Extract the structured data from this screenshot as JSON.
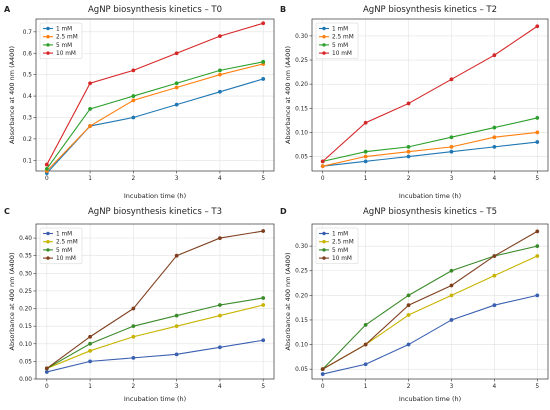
{
  "chart_data": [
    {
      "panel": "A",
      "type": "line",
      "title": "AgNP biosynthesis kinetics – T0",
      "xlabel": "Incubation time (h)",
      "ylabel": "Absorbance at 400 nm (A400)",
      "x": [
        0,
        1,
        2,
        3,
        4,
        5
      ],
      "xticks": [
        "0",
        "1",
        "2",
        "3",
        "4",
        "5"
      ],
      "ylim": [
        0.05,
        0.76
      ],
      "yticks": [
        0.1,
        0.2,
        0.3,
        0.4,
        0.5,
        0.6,
        0.7
      ],
      "ytick_labels": [
        "0.1",
        "0.2",
        "0.3",
        "0.4",
        "0.5",
        "0.6",
        "0.7"
      ],
      "legend_position": "top-left",
      "grid": true,
      "series": [
        {
          "name": "1 mM",
          "color": "#1f77b4",
          "values": [
            0.04,
            0.26,
            0.3,
            0.36,
            0.42,
            0.48
          ]
        },
        {
          "name": "2.5 mM",
          "color": "#ff7f0e",
          "values": [
            0.05,
            0.26,
            0.38,
            0.44,
            0.5,
            0.55
          ]
        },
        {
          "name": "5 mM",
          "color": "#2ca02c",
          "values": [
            0.06,
            0.34,
            0.4,
            0.46,
            0.52,
            0.56
          ]
        },
        {
          "name": "10 mM",
          "color": "#d62728",
          "values": [
            0.08,
            0.46,
            0.52,
            0.6,
            0.68,
            0.74
          ]
        }
      ]
    },
    {
      "panel": "B",
      "type": "line",
      "title": "AgNP biosynthesis kinetics – T2",
      "xlabel": "Incubation time (h)",
      "ylabel": "Absorbance at 400 nm (A400)",
      "x": [
        0,
        1,
        2,
        3,
        4,
        5
      ],
      "xticks": [
        "0",
        "1",
        "2",
        "3",
        "4",
        "5"
      ],
      "ylim": [
        0.02,
        0.335
      ],
      "yticks": [
        0.05,
        0.1,
        0.15,
        0.2,
        0.25,
        0.3
      ],
      "ytick_labels": [
        "0.05",
        "0.10",
        "0.15",
        "0.20",
        "0.25",
        "0.30"
      ],
      "legend_position": "top-left",
      "grid": true,
      "series": [
        {
          "name": "1 mM",
          "color": "#1f77b4",
          "values": [
            0.03,
            0.04,
            0.05,
            0.06,
            0.07,
            0.08
          ]
        },
        {
          "name": "2.5 mM",
          "color": "#ff7f0e",
          "values": [
            0.03,
            0.05,
            0.06,
            0.07,
            0.09,
            0.1
          ]
        },
        {
          "name": "5 mM",
          "color": "#2ca02c",
          "values": [
            0.04,
            0.06,
            0.07,
            0.09,
            0.11,
            0.13
          ]
        },
        {
          "name": "10 mM",
          "color": "#d62728",
          "values": [
            0.04,
            0.12,
            0.16,
            0.21,
            0.26,
            0.32
          ]
        }
      ]
    },
    {
      "panel": "C",
      "type": "line",
      "title": "AgNP biosynthesis kinetics – T3",
      "xlabel": "Incubation time (h)",
      "ylabel": "Absorbance at 400 nm (A400)",
      "x": [
        0,
        1,
        2,
        3,
        4,
        5
      ],
      "xticks": [
        "0",
        "1",
        "2",
        "3",
        "4",
        "5"
      ],
      "ylim": [
        0.0,
        0.44
      ],
      "yticks": [
        0.0,
        0.05,
        0.1,
        0.15,
        0.2,
        0.25,
        0.3,
        0.35,
        0.4
      ],
      "ytick_labels": [
        "0.00",
        "0.05",
        "0.10",
        "0.15",
        "0.20",
        "0.25",
        "0.30",
        "0.35",
        "0.40"
      ],
      "legend_position": "top-left",
      "grid": true,
      "series": [
        {
          "name": "1 mM",
          "color": "#3a5fb0",
          "values": [
            0.02,
            0.05,
            0.06,
            0.07,
            0.09,
            0.11
          ]
        },
        {
          "name": "2.5 mM",
          "color": "#c8b400",
          "values": [
            0.03,
            0.08,
            0.12,
            0.15,
            0.18,
            0.21
          ]
        },
        {
          "name": "5 mM",
          "color": "#3a8a2a",
          "values": [
            0.03,
            0.1,
            0.15,
            0.18,
            0.21,
            0.23
          ]
        },
        {
          "name": "10 mM",
          "color": "#7f3f1f",
          "values": [
            0.03,
            0.12,
            0.2,
            0.35,
            0.4,
            0.42
          ]
        }
      ]
    },
    {
      "panel": "D",
      "type": "line",
      "title": "AgNP biosynthesis kinetics – T5",
      "xlabel": "Incubation time (h)",
      "ylabel": "Absorbance at 400 nm (A400)",
      "x": [
        0,
        1,
        2,
        3,
        4,
        5
      ],
      "xticks": [
        "0",
        "1",
        "2",
        "3",
        "4",
        "5"
      ],
      "ylim": [
        0.03,
        0.345
      ],
      "yticks": [
        0.05,
        0.1,
        0.15,
        0.2,
        0.25,
        0.3
      ],
      "ytick_labels": [
        "0.05",
        "0.10",
        "0.15",
        "0.20",
        "0.25",
        "0.30"
      ],
      "legend_position": "top-left",
      "grid": true,
      "series": [
        {
          "name": "1 mM",
          "color": "#3a5fb0",
          "values": [
            0.04,
            0.06,
            0.1,
            0.15,
            0.18,
            0.2
          ]
        },
        {
          "name": "2.5 mM",
          "color": "#c8b400",
          "values": [
            0.05,
            0.1,
            0.16,
            0.2,
            0.24,
            0.28
          ]
        },
        {
          "name": "5 mM",
          "color": "#3a8a2a",
          "values": [
            0.05,
            0.14,
            0.2,
            0.25,
            0.28,
            0.3
          ]
        },
        {
          "name": "10 mM",
          "color": "#7f3f1f",
          "values": [
            0.05,
            0.1,
            0.18,
            0.22,
            0.28,
            0.33
          ]
        }
      ]
    }
  ]
}
